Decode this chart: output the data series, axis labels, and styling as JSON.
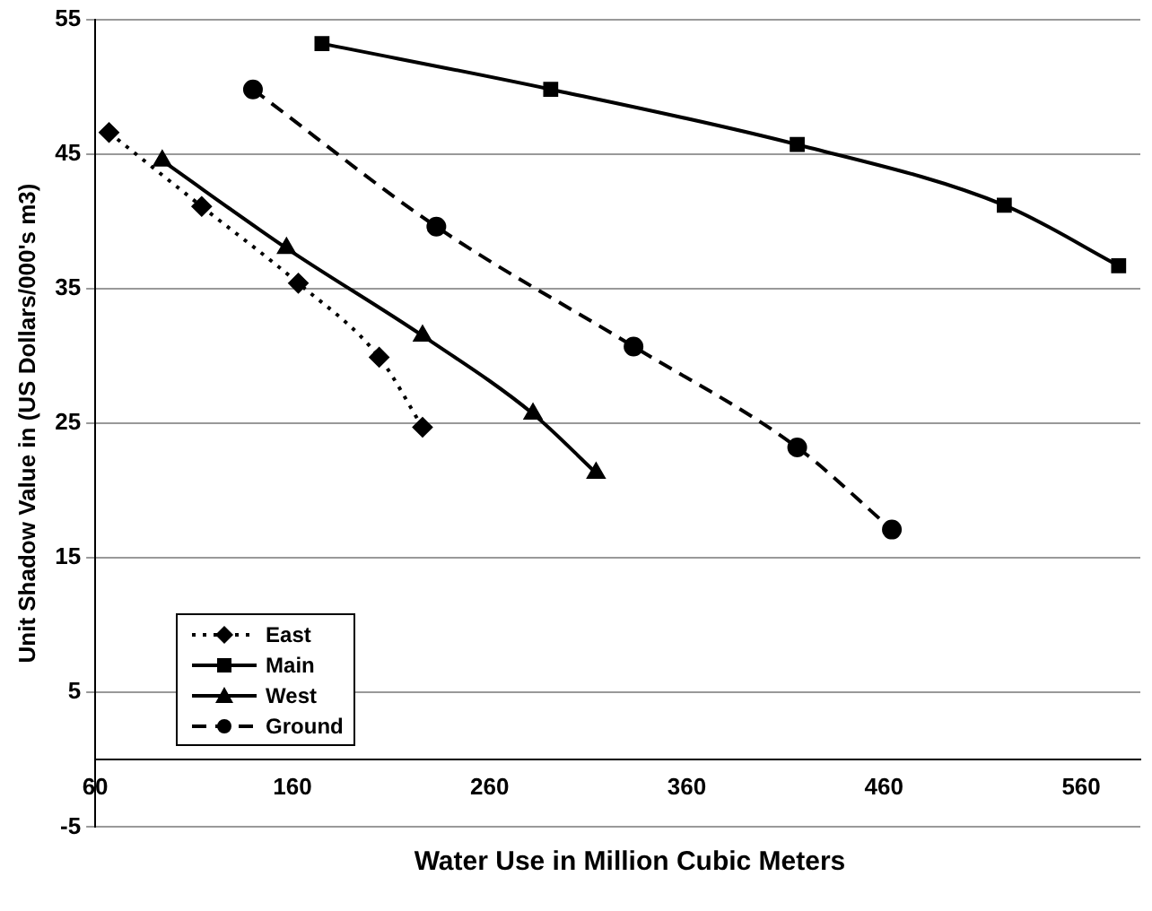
{
  "chart_data": {
    "type": "line",
    "xlabel": "Water Use in Million Cubic Meters",
    "ylabel": "Unit Shadow Value in (US Dollars/000's m3)",
    "xlim": [
      60,
      590
    ],
    "xticks": [
      60,
      160,
      260,
      360,
      460,
      560
    ],
    "ylim": [
      -5,
      55
    ],
    "yticks": [
      -5,
      5,
      15,
      25,
      35,
      45,
      55
    ],
    "grid": "y",
    "legend": "bottom left",
    "series": [
      {
        "name": "East",
        "color": "#000000",
        "marker": "diamond",
        "line_style": "dotted",
        "x": [
          67,
          114,
          163,
          204,
          226
        ],
        "values": [
          46.6,
          41.1,
          35.4,
          29.9,
          24.7
        ]
      },
      {
        "name": "Main",
        "color": "#000000",
        "marker": "square",
        "line_style": "solid",
        "x": [
          175,
          291,
          416,
          521,
          579
        ],
        "values": [
          53.2,
          49.8,
          45.7,
          41.2,
          36.7
        ]
      },
      {
        "name": "West",
        "color": "#000000",
        "marker": "triangle",
        "line_style": "solid",
        "x": [
          94,
          157,
          226,
          282,
          314
        ],
        "values": [
          44.5,
          38.0,
          31.5,
          25.7,
          21.3
        ]
      },
      {
        "name": "Ground",
        "color": "#000000",
        "marker": "circle",
        "line_style": "dashed",
        "x": [
          140,
          233,
          333,
          416,
          464
        ],
        "values": [
          49.8,
          39.6,
          30.7,
          23.2,
          17.1
        ]
      }
    ]
  }
}
